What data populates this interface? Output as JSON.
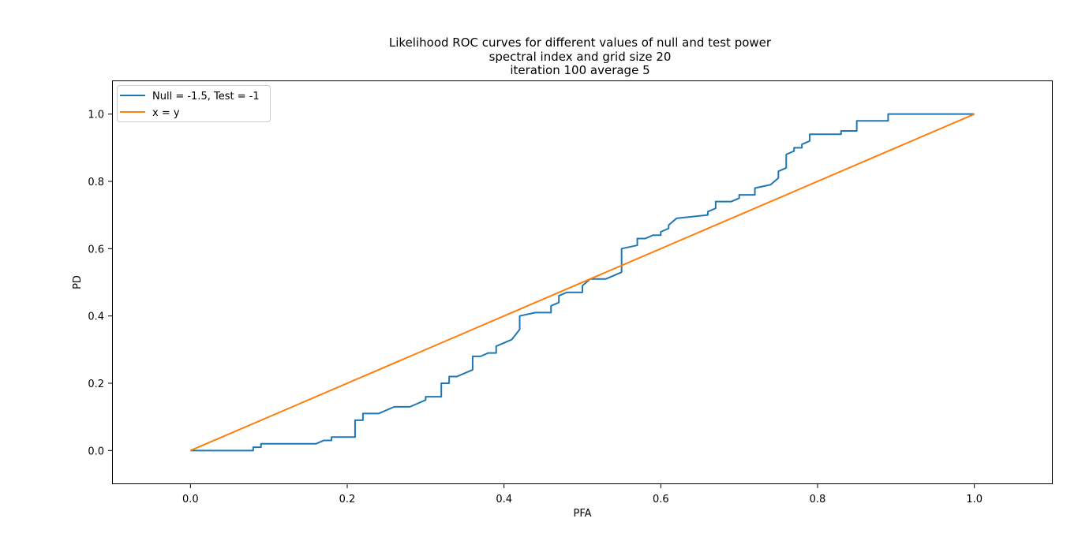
{
  "chart_data": {
    "type": "line",
    "title_lines": [
      "Likelihood ROC curves for different values of null and test power",
      "spectral index and grid size 20",
      "iteration 100 average 5"
    ],
    "xlabel": "PFA",
    "ylabel": "PD",
    "xlim": [
      -0.1,
      1.1
    ],
    "ylim": [
      -0.1,
      1.1
    ],
    "x_ticks": [
      0.0,
      0.2,
      0.4,
      0.6,
      0.8,
      1.0
    ],
    "y_ticks": [
      0.0,
      0.2,
      0.4,
      0.6,
      0.8,
      1.0
    ],
    "x_tick_labels": [
      "0.0",
      "0.2",
      "0.4",
      "0.6",
      "0.8",
      "1.0"
    ],
    "y_tick_labels": [
      "0.0",
      "0.2",
      "0.4",
      "0.6",
      "0.8",
      "1.0"
    ],
    "grid": false,
    "legend_position": "upper-left",
    "series": [
      {
        "name": "Null = -1.5, Test = -1",
        "color": "#1f77b4",
        "x": [
          0.0,
          0.08,
          0.08,
          0.09,
          0.09,
          0.16,
          0.17,
          0.18,
          0.18,
          0.21,
          0.21,
          0.22,
          0.22,
          0.24,
          0.26,
          0.28,
          0.3,
          0.3,
          0.32,
          0.32,
          0.33,
          0.33,
          0.34,
          0.36,
          0.36,
          0.37,
          0.38,
          0.39,
          0.39,
          0.41,
          0.42,
          0.42,
          0.44,
          0.46,
          0.46,
          0.47,
          0.47,
          0.48,
          0.5,
          0.5,
          0.51,
          0.53,
          0.55,
          0.55,
          0.57,
          0.57,
          0.58,
          0.59,
          0.6,
          0.6,
          0.61,
          0.61,
          0.62,
          0.66,
          0.66,
          0.67,
          0.67,
          0.69,
          0.7,
          0.7,
          0.72,
          0.72,
          0.74,
          0.75,
          0.75,
          0.76,
          0.76,
          0.77,
          0.77,
          0.78,
          0.78,
          0.79,
          0.79,
          0.83,
          0.83,
          0.85,
          0.85,
          0.89,
          0.89,
          1.0
        ],
        "y": [
          0.0,
          0.0,
          0.01,
          0.01,
          0.02,
          0.02,
          0.03,
          0.03,
          0.04,
          0.04,
          0.09,
          0.09,
          0.11,
          0.11,
          0.13,
          0.13,
          0.15,
          0.16,
          0.16,
          0.2,
          0.2,
          0.22,
          0.22,
          0.24,
          0.28,
          0.28,
          0.29,
          0.29,
          0.31,
          0.33,
          0.36,
          0.4,
          0.41,
          0.41,
          0.43,
          0.44,
          0.46,
          0.47,
          0.47,
          0.49,
          0.51,
          0.51,
          0.53,
          0.6,
          0.61,
          0.63,
          0.63,
          0.64,
          0.64,
          0.65,
          0.66,
          0.67,
          0.69,
          0.7,
          0.71,
          0.72,
          0.74,
          0.74,
          0.75,
          0.76,
          0.76,
          0.78,
          0.79,
          0.81,
          0.83,
          0.84,
          0.88,
          0.89,
          0.9,
          0.9,
          0.91,
          0.92,
          0.94,
          0.94,
          0.95,
          0.95,
          0.98,
          0.98,
          1.0,
          1.0
        ]
      },
      {
        "name": "x = y",
        "color": "#ff7f0e",
        "x": [
          0.0,
          1.0
        ],
        "y": [
          0.0,
          1.0
        ]
      }
    ]
  }
}
